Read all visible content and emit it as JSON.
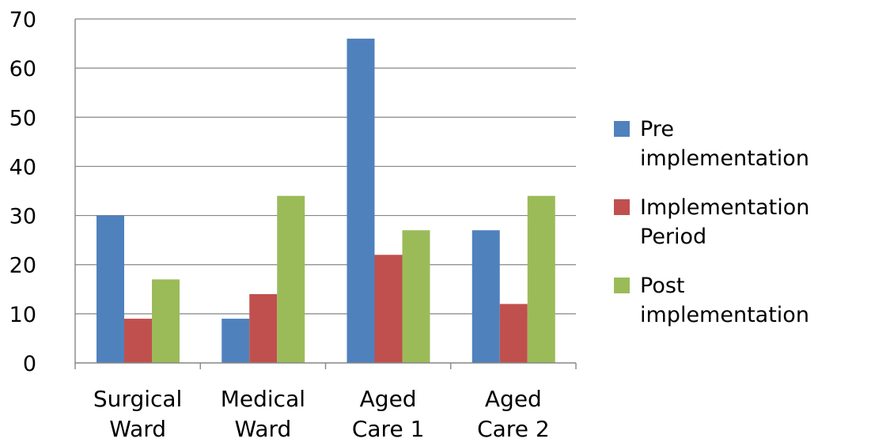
{
  "chart_data": {
    "type": "bar",
    "categories": [
      [
        "Surgical",
        "Ward"
      ],
      [
        "Medical",
        "Ward"
      ],
      [
        "Aged",
        "Care 1"
      ],
      [
        "Aged",
        "Care 2"
      ]
    ],
    "series": [
      {
        "name": [
          "Pre",
          "implementation"
        ],
        "values": [
          30,
          9,
          66,
          27
        ],
        "color": "#4F81BD"
      },
      {
        "name": [
          "Implementation",
          "Period"
        ],
        "values": [
          9,
          14,
          22,
          12
        ],
        "color": "#C0504D"
      },
      {
        "name": [
          "Post",
          "implementation"
        ],
        "values": [
          17,
          34,
          27,
          34
        ],
        "color": "#9BBB59"
      }
    ],
    "ylim": [
      0,
      70
    ],
    "yticks": [
      0,
      10,
      20,
      30,
      40,
      50,
      60,
      70
    ],
    "grid": true,
    "legend": "right",
    "title": "",
    "xlabel": "",
    "ylabel": ""
  }
}
